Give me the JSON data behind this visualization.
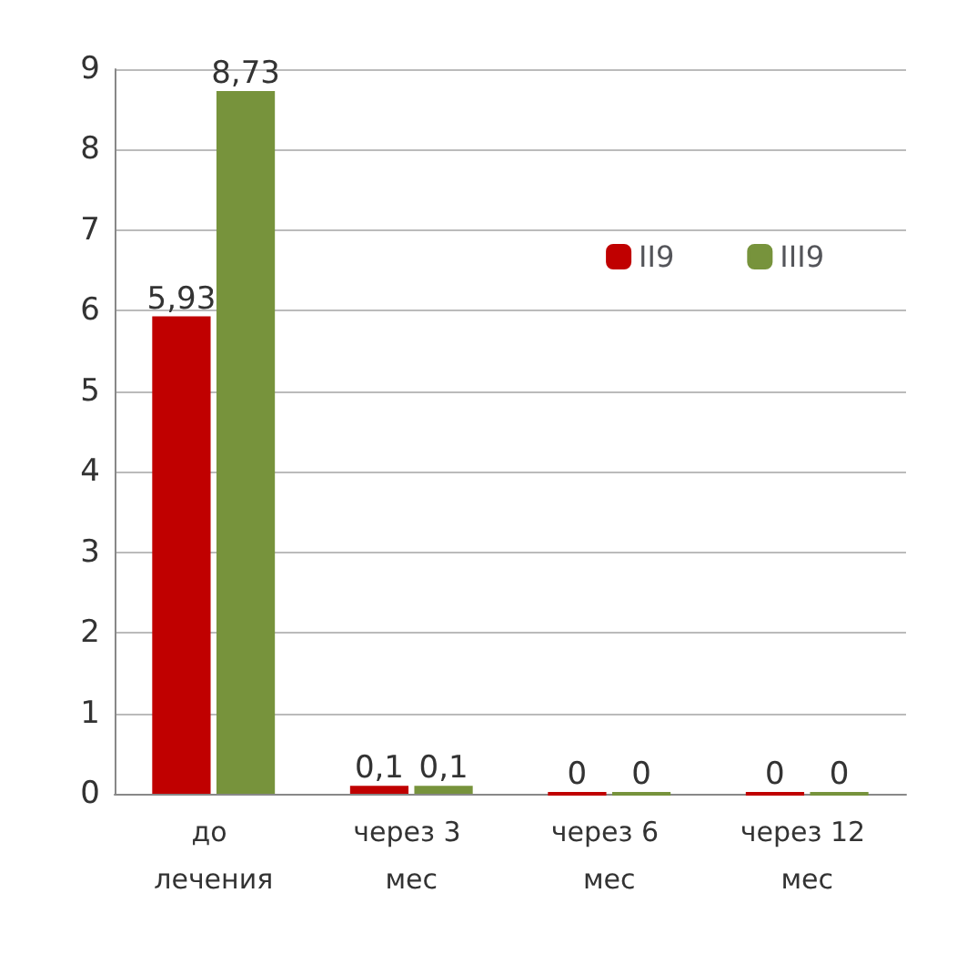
{
  "chart_data": {
    "type": "bar",
    "categories": [
      "до лечения",
      "через 3 мес",
      "через 6 мес",
      "через 12 мес"
    ],
    "series": [
      {
        "name": "II9",
        "color": "#c00000",
        "values": [
          5.93,
          0.1,
          0,
          0
        ],
        "value_labels": [
          "5,93",
          "0,1",
          "0",
          "0"
        ]
      },
      {
        "name": "III9",
        "color": "#77933c",
        "values": [
          8.73,
          0.1,
          0,
          0
        ],
        "value_labels": [
          "8,73",
          "0,1",
          "0",
          "0"
        ]
      }
    ],
    "ylim": [
      0,
      9
    ],
    "yticks": [
      0,
      1,
      2,
      3,
      4,
      5,
      6,
      7,
      8,
      9
    ],
    "grid": "y",
    "legend": "top right"
  }
}
